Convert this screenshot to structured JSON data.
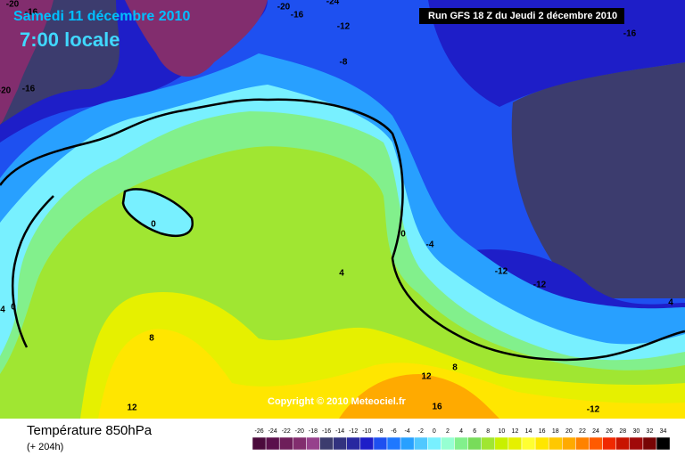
{
  "header": {
    "date": "Samedi 11 décembre 2010",
    "time": "7:00 locale",
    "run": "Run GFS 18 Z du Jeudi 2 décembre 2010"
  },
  "contour_labels": [
    "-20",
    "-16",
    "-20",
    "-16",
    "-24",
    "-12",
    "-8",
    "-16",
    "-20",
    "-16",
    "0",
    "0",
    "-4",
    "-12",
    "-12",
    "4",
    "4",
    "0",
    "4",
    "8",
    "8",
    "12",
    "12",
    "16",
    "-12"
  ],
  "copyright": "Copyright © 2010 Meteociel.fr",
  "footer": {
    "title": "Température 850hPa",
    "subtitle": "(+ 204h)"
  },
  "scale": {
    "values": [
      -26,
      -24,
      -22,
      -20,
      -18,
      -16,
      -14,
      -12,
      -10,
      -8,
      -6,
      -4,
      -2,
      0,
      2,
      4,
      6,
      8,
      10,
      12,
      14,
      16,
      18,
      20,
      22,
      24,
      26,
      28,
      30,
      32,
      34
    ],
    "colors": [
      "#4b0a3c",
      "#5a0f4b",
      "#6e1e5a",
      "#822d6e",
      "#96418c",
      "#3c3c6e",
      "#32327f",
      "#2828a0",
      "#1e1ec8",
      "#1e50f0",
      "#1e78ff",
      "#28a0ff",
      "#50c8ff",
      "#78f0ff",
      "#96ffd2",
      "#82f08c",
      "#78dc5a",
      "#a0e632",
      "#c8f000",
      "#e6f000",
      "#ffff32",
      "#ffe600",
      "#ffc800",
      "#ffaa00",
      "#ff8200",
      "#ff5a00",
      "#f02800",
      "#c81400",
      "#a00a0a",
      "#780505",
      "#000000"
    ]
  }
}
